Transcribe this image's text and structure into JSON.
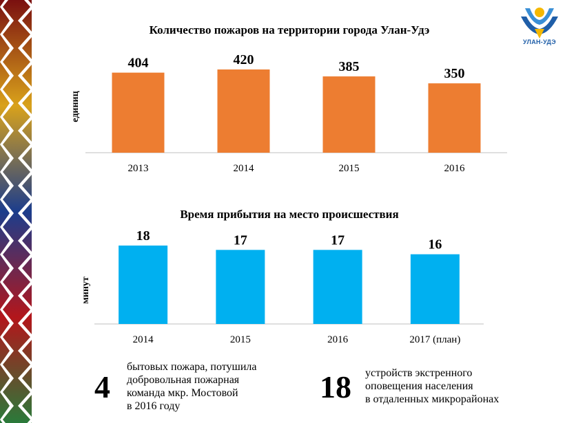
{
  "logo": {
    "text": "УЛАН-УДЭ"
  },
  "charts": [
    {
      "type": "bar",
      "title": "Количество пожаров на территории города Улан-Удэ",
      "ylabel": "единиц",
      "categories": [
        "2013",
        "2014",
        "2015",
        "2016"
      ],
      "values": [
        404,
        420,
        385,
        350
      ],
      "ylim": [
        0,
        420
      ],
      "color": "#ed7d31"
    },
    {
      "type": "bar",
      "title": "Время прибытия на место происшествия",
      "ylabel": "минут",
      "categories": [
        "2014",
        "2015",
        "2016",
        "2017 (план)"
      ],
      "values": [
        18,
        17,
        17,
        16
      ],
      "ylim": [
        0,
        18
      ],
      "color": "#00b0f0"
    }
  ],
  "facts": [
    {
      "number": "4",
      "lines": [
        "бытовых пожара, потушила",
        "добровольная пожарная",
        "команда мкр. Мостовой",
        "в 2016 году"
      ]
    },
    {
      "number": "18",
      "lines": [
        "устройств экстренного",
        "оповещения населения",
        "в отдаленных микрорайонах"
      ]
    }
  ]
}
